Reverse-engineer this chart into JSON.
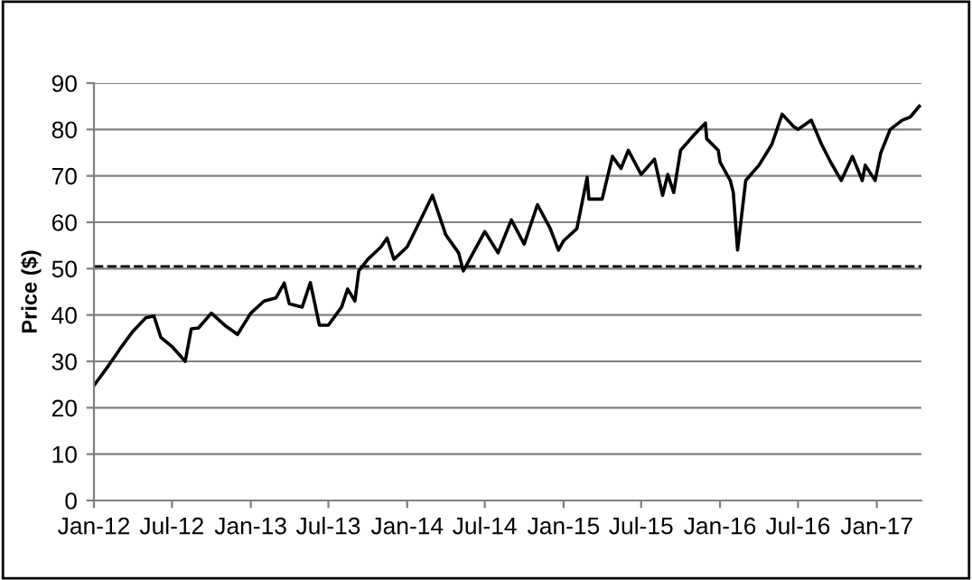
{
  "chart_data": {
    "type": "line",
    "ylabel": "Price ($)",
    "x": [
      "2012-01-01",
      "2012-02-01",
      "2012-03-01",
      "2012-04-01",
      "2012-05-01",
      "2012-05-20",
      "2012-06-05",
      "2012-07-01",
      "2012-08-01",
      "2012-08-15",
      "2012-09-01",
      "2012-10-01",
      "2012-11-01",
      "2012-12-01",
      "2013-01-01",
      "2013-02-01",
      "2013-03-01",
      "2013-03-20",
      "2013-04-01",
      "2013-05-01",
      "2013-05-20",
      "2013-06-10",
      "2013-07-01",
      "2013-08-01",
      "2013-08-15",
      "2013-09-01",
      "2013-09-10",
      "2013-10-01",
      "2013-11-01",
      "2013-11-15",
      "2013-12-01",
      "2014-01-01",
      "2014-02-01",
      "2014-03-01",
      "2014-04-01",
      "2014-05-01",
      "2014-05-12",
      "2014-07-01",
      "2014-08-01",
      "2014-09-01",
      "2014-10-01",
      "2014-11-01",
      "2014-12-01",
      "2014-12-20",
      "2015-01-01",
      "2015-02-01",
      "2015-02-25",
      "2015-03-01",
      "2015-04-01",
      "2015-04-25",
      "2015-05-15",
      "2015-06-01",
      "2015-07-01",
      "2015-08-01",
      "2015-08-20",
      "2015-09-01",
      "2015-09-15",
      "2015-10-01",
      "2015-11-01",
      "2015-11-28",
      "2015-12-01",
      "2015-12-28",
      "2016-01-01",
      "2016-01-25",
      "2016-02-01",
      "2016-02-11",
      "2016-03-01",
      "2016-04-01",
      "2016-05-01",
      "2016-05-25",
      "2016-06-20",
      "2016-07-01",
      "2016-08-01",
      "2016-08-25",
      "2016-09-15",
      "2016-10-10",
      "2016-11-05",
      "2016-11-28",
      "2016-12-05",
      "2016-12-28",
      "2017-01-10",
      "2017-02-01",
      "2017-03-01",
      "2017-03-20",
      "2017-04-10"
    ],
    "values": [
      24.8,
      28.7,
      32.6,
      36.5,
      39.4,
      39.8,
      35.2,
      33.2,
      30.0,
      37.0,
      37.2,
      40.4,
      37.8,
      35.8,
      40.4,
      43.0,
      43.7,
      46.9,
      42.4,
      41.7,
      47.0,
      37.8,
      37.8,
      41.7,
      45.6,
      43.0,
      49.5,
      52.0,
      54.7,
      56.6,
      52.0,
      54.7,
      60.5,
      65.8,
      57.3,
      53.4,
      49.5,
      58.0,
      53.4,
      60.5,
      55.3,
      63.8,
      58.6,
      54.0,
      56.0,
      58.6,
      69.7,
      65.0,
      65.0,
      74.2,
      71.6,
      75.5,
      70.3,
      73.6,
      65.8,
      70.3,
      66.4,
      75.5,
      78.8,
      81.4,
      78.0,
      75.5,
      73.0,
      69.0,
      66.4,
      54.0,
      69.0,
      72.3,
      76.8,
      83.3,
      80.7,
      80.0,
      82.0,
      76.8,
      73.0,
      69.0,
      74.2,
      69.0,
      72.3,
      69.0,
      74.9,
      80.0,
      82.0,
      82.7,
      85.0
    ],
    "color": "#000000",
    "xlim": [
      "2012-01-01",
      "2017-04-15"
    ],
    "xticks": [
      {
        "value": "2012-01-01",
        "label": "Jan-12"
      },
      {
        "value": "2012-07-01",
        "label": "Jul-12"
      },
      {
        "value": "2013-01-01",
        "label": "Jan-13"
      },
      {
        "value": "2013-07-01",
        "label": "Jul-13"
      },
      {
        "value": "2014-01-01",
        "label": "Jan-14"
      },
      {
        "value": "2014-07-01",
        "label": "Jul-14"
      },
      {
        "value": "2015-01-01",
        "label": "Jan-15"
      },
      {
        "value": "2015-07-01",
        "label": "Jul-15"
      },
      {
        "value": "2016-01-01",
        "label": "Jan-16"
      },
      {
        "value": "2016-07-01",
        "label": "Jul-16"
      },
      {
        "value": "2017-01-01",
        "label": "Jan-17"
      }
    ],
    "ylim": [
      0,
      90
    ],
    "yticks": [
      0,
      10,
      20,
      30,
      40,
      50,
      60,
      70,
      80,
      90
    ],
    "grid": "y",
    "marker": "none",
    "line_style": "solid",
    "ref_lines": [
      {
        "axis": "y",
        "value": 50.5,
        "color": "#000000",
        "line_style": "dashed"
      }
    ]
  }
}
